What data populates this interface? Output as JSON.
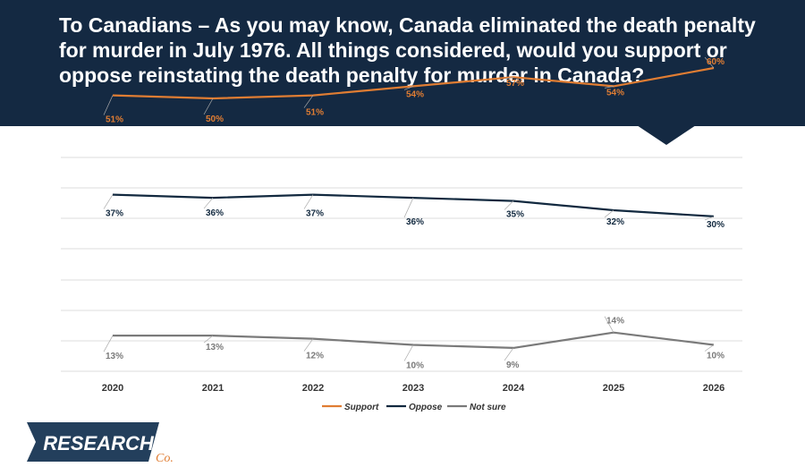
{
  "header": {
    "title": "To Canadians – As you may know, Canada eliminated the death penalty for murder in July 1976. All things considered, would you support or oppose reinstating the death penalty for murder in Canada?"
  },
  "logo": {
    "word": "RESEARCH",
    "suffix": "Co."
  },
  "colors": {
    "banner": "#142942",
    "support": "#E07D33",
    "oppose": "#12293F",
    "not_sure": "#7A7A7A"
  },
  "chart_data": {
    "type": "line",
    "categories": [
      "2020",
      "2021",
      "2022",
      "2023",
      "2024",
      "2025",
      "2026"
    ],
    "series": [
      {
        "name": "Support",
        "values": [
          51,
          50,
          51,
          54,
          57,
          54,
          60
        ],
        "labels": [
          "51%",
          "50%",
          "51%",
          "54%",
          "57%",
          "54%",
          "60%"
        ],
        "color": "#E07D33"
      },
      {
        "name": "Oppose",
        "values": [
          37,
          36,
          37,
          36,
          35,
          32,
          30
        ],
        "labels": [
          "37%",
          "36%",
          "37%",
          "36%",
          "35%",
          "32%",
          "30%"
        ],
        "color": "#12293F"
      },
      {
        "name": "Not sure",
        "values": [
          13,
          13,
          12,
          10,
          9,
          14,
          10
        ],
        "labels": [
          "13%",
          "13%",
          "12%",
          "10%",
          "9%",
          "14%",
          "10%"
        ],
        "color": "#7A7A7A"
      }
    ],
    "grid": true,
    "legend": "bottom"
  }
}
